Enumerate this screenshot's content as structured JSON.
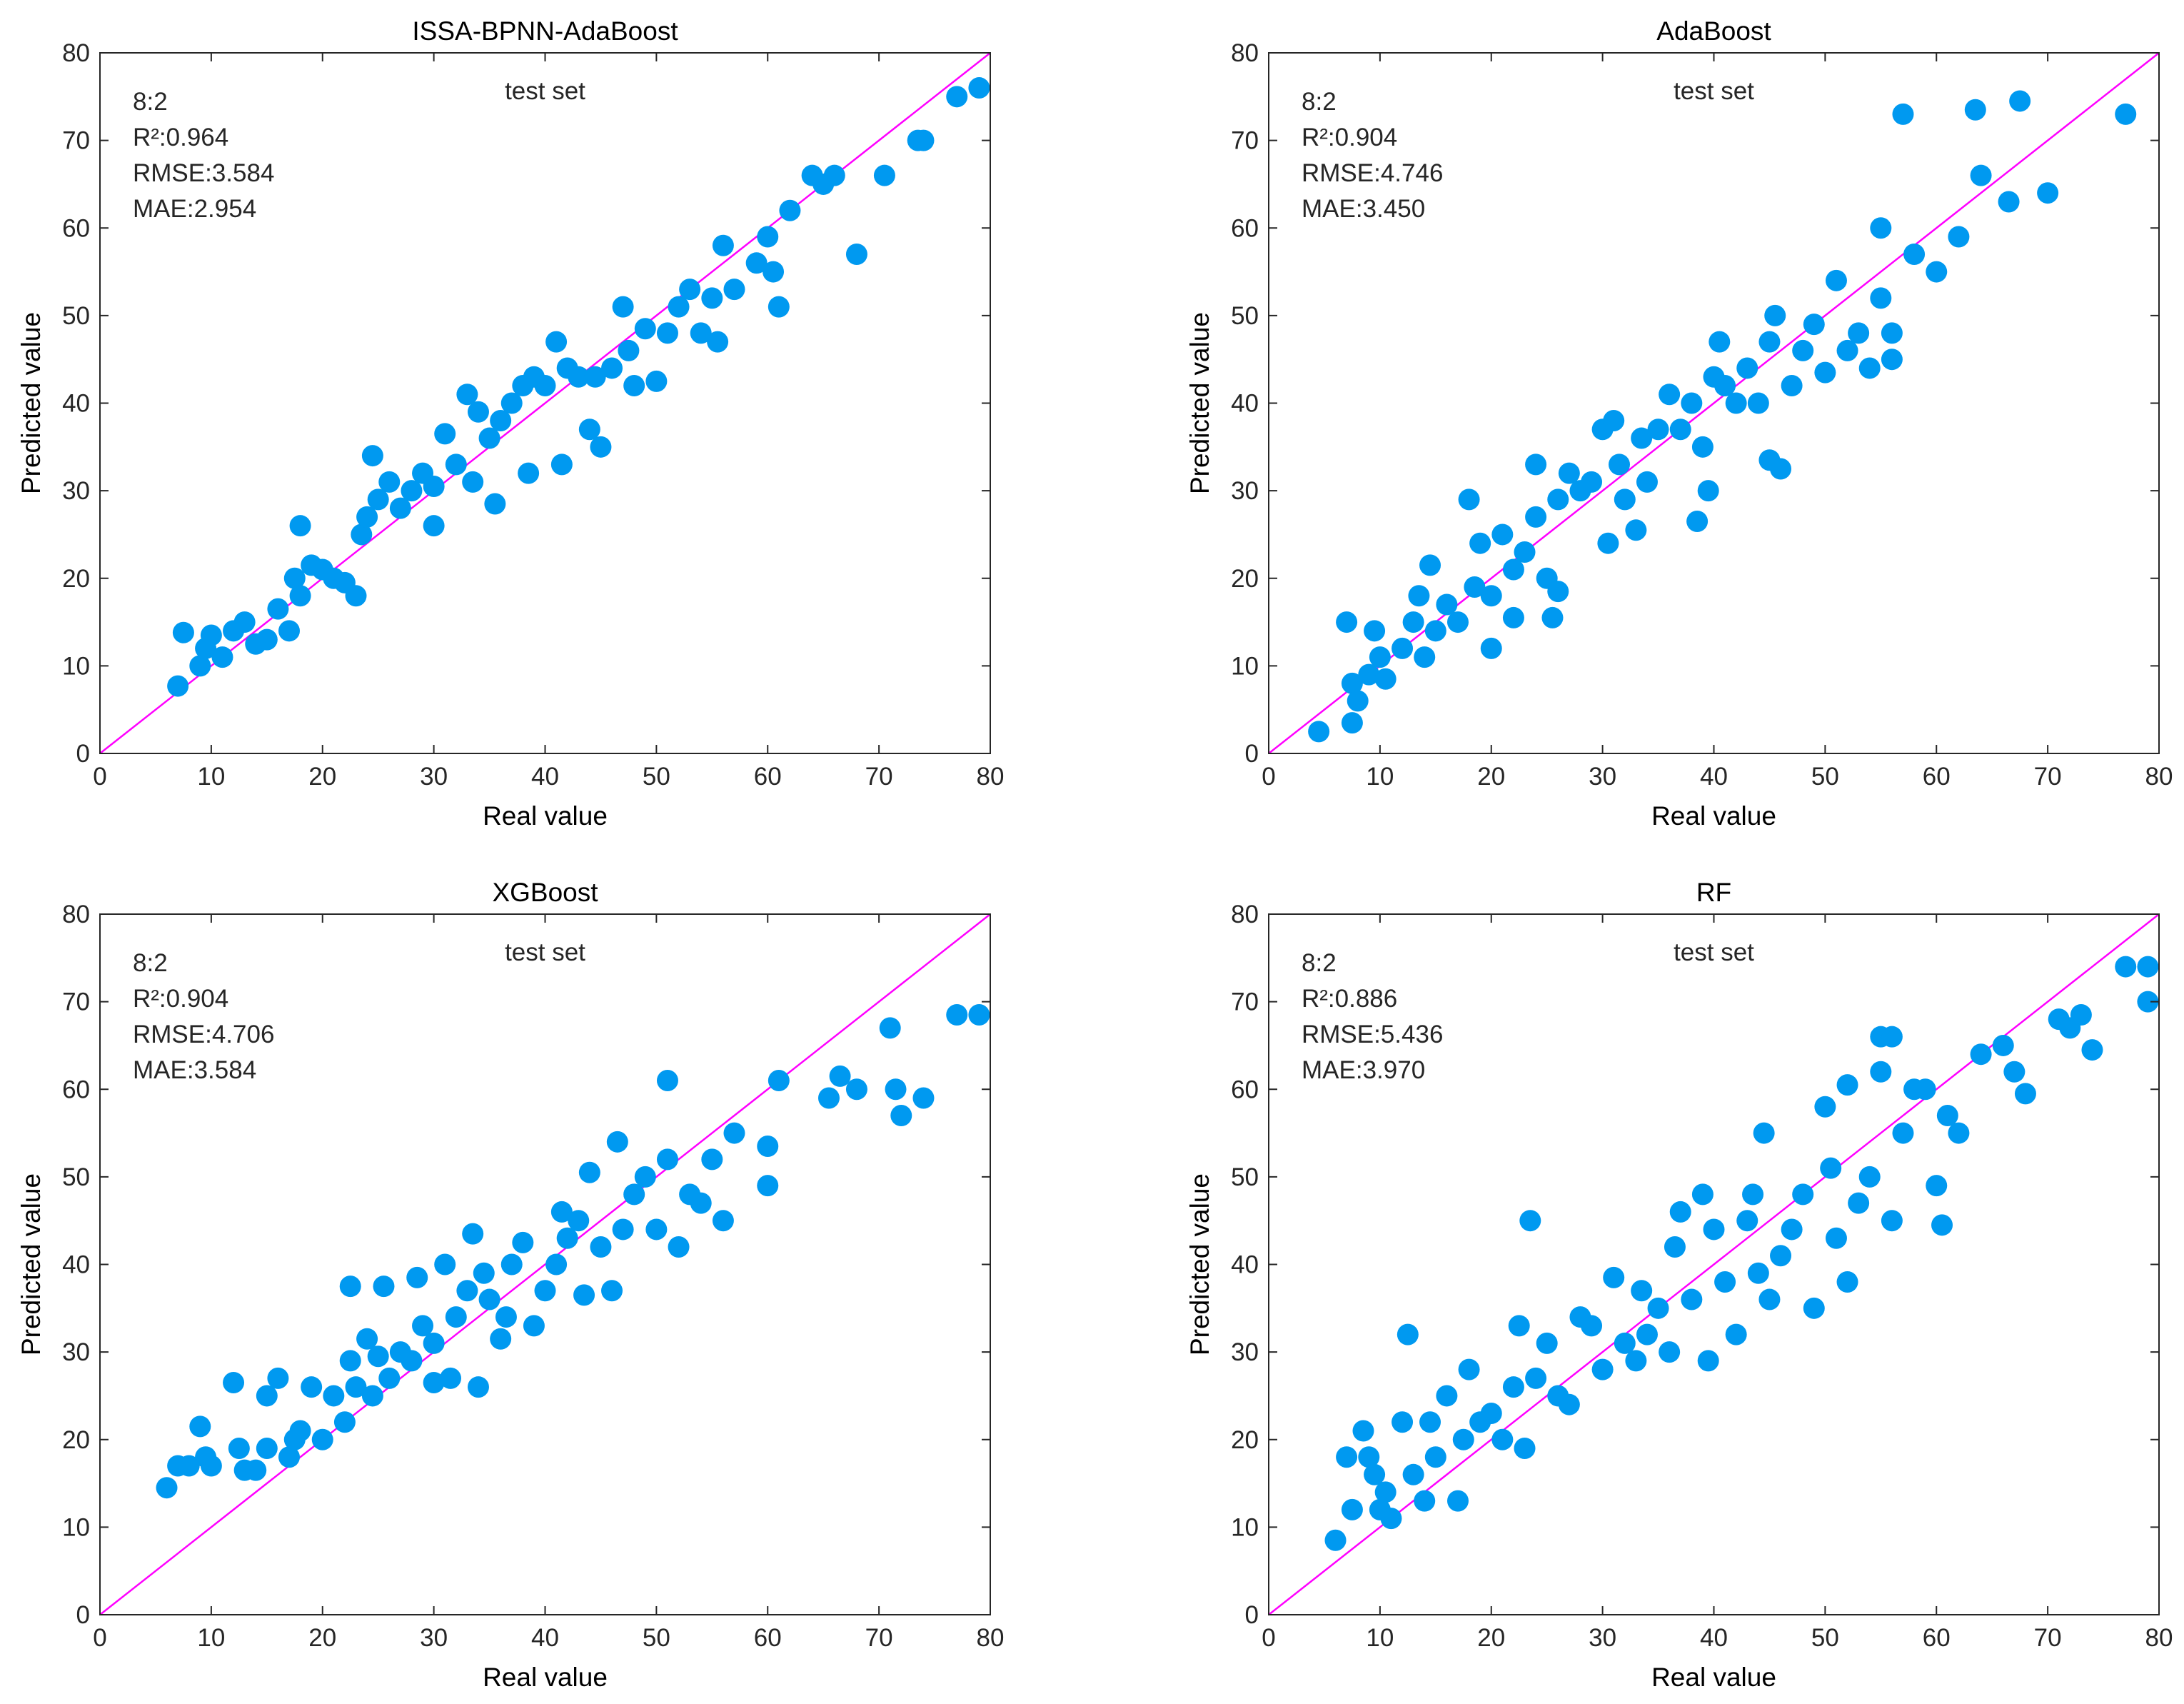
{
  "chart_data": [
    {
      "type": "scatter",
      "title": "ISSA-BPNN-AdaBoost",
      "subtitle": "test set",
      "notes": [
        "8:2",
        "R²:0.964",
        "RMSE:3.584",
        "MAE:2.954"
      ],
      "xlabel": "Real value",
      "ylabel": "Predicted value",
      "color": "#0099f0",
      "diagonal_color": "#ff00ff",
      "xlim": [
        0,
        80
      ],
      "ylim": [
        0,
        80
      ],
      "xticks": [
        0,
        10,
        20,
        30,
        40,
        50,
        60,
        70,
        80
      ],
      "yticks": [
        0,
        10,
        20,
        30,
        40,
        50,
        60,
        70,
        80
      ],
      "x": [
        7,
        7.5,
        9,
        9.5,
        10,
        11,
        12,
        13,
        14,
        15,
        16,
        17,
        17.5,
        18,
        18,
        19,
        20,
        21,
        22,
        23,
        23.5,
        24,
        24.5,
        25,
        26,
        27,
        28,
        29,
        30,
        30,
        31,
        32,
        33,
        33.5,
        34,
        35,
        35.5,
        36,
        37,
        38,
        38.5,
        39,
        40,
        41,
        41.5,
        42,
        43,
        44,
        44.5,
        45,
        46,
        47,
        47.5,
        48,
        49,
        50,
        51,
        52,
        53,
        54,
        55,
        55.5,
        56,
        57,
        59,
        60,
        60.5,
        61,
        62,
        64,
        65,
        66,
        68,
        70.5,
        73.5,
        74,
        77,
        79
      ],
      "values": [
        7.7,
        13.8,
        10,
        12,
        13.5,
        11,
        14,
        15,
        12.5,
        13,
        16.5,
        14,
        20,
        26,
        18,
        21.5,
        21,
        20,
        19.5,
        18,
        25,
        27,
        34,
        29,
        31,
        28,
        30,
        32,
        30.5,
        26,
        36.5,
        33,
        41,
        31,
        39,
        36,
        28.5,
        38,
        40,
        42,
        32,
        43,
        42,
        47,
        33,
        44,
        43,
        37,
        43,
        35,
        44,
        51,
        46,
        42,
        48.5,
        42.5,
        48,
        51,
        53,
        48,
        52,
        47,
        58,
        53,
        56,
        59,
        55,
        51,
        62,
        66,
        65,
        66,
        57,
        66,
        70,
        70,
        75,
        76
      ]
    },
    {
      "type": "scatter",
      "title": "AdaBoost",
      "subtitle": "test set",
      "notes": [
        "8:2",
        "R²:0.904",
        "RMSE:4.746",
        "MAE:3.450"
      ],
      "xlabel": "Real value",
      "ylabel": "Predicted value",
      "color": "#0099f0",
      "diagonal_color": "#ff00ff",
      "xlim": [
        0,
        80
      ],
      "ylim": [
        0,
        80
      ],
      "xticks": [
        0,
        10,
        20,
        30,
        40,
        50,
        60,
        70,
        80
      ],
      "yticks": [
        0,
        10,
        20,
        30,
        40,
        50,
        60,
        70,
        80
      ],
      "x": [
        4.5,
        7,
        7.5,
        7.5,
        8,
        9,
        9.5,
        10,
        10.5,
        12,
        13,
        13.5,
        14,
        14.5,
        15,
        16,
        17,
        18,
        18.5,
        19,
        20,
        20,
        21,
        22,
        22,
        23,
        24,
        24,
        25,
        25.5,
        26,
        26,
        27,
        28,
        29,
        30,
        30.5,
        31,
        31.5,
        32,
        33,
        33.5,
        34,
        35,
        36,
        37,
        38,
        38.5,
        39,
        39.5,
        40,
        40.5,
        41,
        42,
        43,
        44,
        45,
        45,
        45.5,
        46,
        47,
        48,
        49,
        50,
        51,
        52,
        53,
        54,
        55,
        55,
        56,
        56,
        57,
        58,
        60,
        62,
        63.5,
        64,
        66.5,
        67.5,
        70,
        77
      ],
      "values": [
        2.5,
        15,
        8,
        3.5,
        6,
        9,
        14,
        11,
        8.5,
        12,
        15,
        18,
        11,
        21.5,
        14,
        17,
        15,
        29,
        19,
        24,
        12,
        18,
        25,
        15.5,
        21,
        23,
        33,
        27,
        20,
        15.5,
        29,
        18.5,
        32,
        30,
        31,
        37,
        24,
        38,
        33,
        29,
        25.5,
        36,
        31,
        37,
        41,
        37,
        40,
        26.5,
        35,
        30,
        43,
        47,
        42,
        40,
        44,
        40,
        47,
        33.5,
        50,
        32.5,
        42,
        46,
        49,
        43.5,
        54,
        46,
        48,
        44,
        60,
        52,
        45,
        48,
        73,
        57,
        55,
        59,
        73.5,
        66,
        63,
        74.5,
        64,
        73
      ]
    },
    {
      "type": "scatter",
      "title": "XGBoost",
      "subtitle": "test set",
      "notes": [
        "8:2",
        "R²:0.904",
        "RMSE:4.706",
        "MAE:3.584"
      ],
      "xlabel": "Real value",
      "ylabel": "Predicted value",
      "color": "#0099f0",
      "diagonal_color": "#ff00ff",
      "xlim": [
        0,
        80
      ],
      "ylim": [
        0,
        80
      ],
      "xticks": [
        0,
        10,
        20,
        30,
        40,
        50,
        60,
        70,
        80
      ],
      "yticks": [
        0,
        10,
        20,
        30,
        40,
        50,
        60,
        70,
        80
      ],
      "x": [
        6,
        7,
        8,
        9,
        9.5,
        10,
        12,
        12.5,
        13,
        14,
        15,
        15,
        16,
        17,
        17.5,
        18,
        19,
        20,
        21,
        22,
        22.5,
        22.5,
        23,
        24,
        24.5,
        25,
        25.5,
        26,
        27,
        28,
        28.5,
        29,
        30,
        30,
        31,
        31.5,
        32,
        33,
        33.5,
        34,
        34.5,
        35,
        36,
        36.5,
        37,
        38,
        39,
        40,
        41,
        41.5,
        42,
        43,
        43.5,
        44,
        45,
        46,
        46.5,
        47,
        48,
        49,
        50,
        51,
        51,
        52,
        53,
        54,
        55,
        56,
        57,
        60,
        60,
        61,
        65.5,
        66.5,
        68,
        71,
        71.5,
        72,
        74,
        77,
        79
      ],
      "values": [
        14.5,
        17,
        17,
        21.5,
        18,
        17,
        26.5,
        19,
        16.5,
        16.5,
        25,
        19,
        27,
        18,
        20,
        21,
        26,
        20,
        25,
        22,
        29,
        37.5,
        26,
        31.5,
        25,
        29.5,
        37.5,
        27,
        30,
        29,
        38.5,
        33,
        31,
        26.5,
        40,
        27,
        34,
        37,
        43.5,
        26,
        39,
        36,
        31.5,
        34,
        40,
        42.5,
        33,
        37,
        40,
        46,
        43,
        45,
        36.5,
        50.5,
        42,
        37,
        54,
        44,
        48,
        50,
        44,
        61,
        52,
        42,
        48,
        47,
        52,
        45,
        55,
        53.5,
        49,
        61,
        59,
        61.5,
        60,
        67,
        60,
        57,
        59,
        68.5,
        68.5
      ]
    },
    {
      "type": "scatter",
      "title": "RF",
      "subtitle": "test set",
      "notes": [
        "8:2",
        "R²:0.886",
        "RMSE:5.436",
        "MAE:3.970"
      ],
      "xlabel": "Real value",
      "ylabel": "Predicted value",
      "color": "#0099f0",
      "diagonal_color": "#ff00ff",
      "xlim": [
        0,
        80
      ],
      "ylim": [
        0,
        80
      ],
      "xticks": [
        0,
        10,
        20,
        30,
        40,
        50,
        60,
        70,
        80
      ],
      "yticks": [
        0,
        10,
        20,
        30,
        40,
        50,
        60,
        70,
        80
      ],
      "x": [
        6,
        7,
        7.5,
        8.5,
        9,
        9.5,
        10,
        10.5,
        11,
        12,
        12.5,
        13,
        14,
        14.5,
        15,
        16,
        17,
        17.5,
        18,
        19,
        20,
        21,
        22,
        22.5,
        23,
        23.5,
        24,
        25,
        26,
        27,
        28,
        29,
        30,
        31,
        32,
        33,
        33.5,
        34,
        35,
        36,
        36.5,
        37,
        38,
        39,
        39.5,
        40,
        41,
        42,
        43,
        43.5,
        44,
        44.5,
        45,
        46,
        47,
        48,
        49,
        50,
        50.5,
        51,
        52,
        52,
        53,
        54,
        55,
        55,
        56,
        56,
        57,
        58,
        59,
        60,
        60.5,
        61,
        62,
        64,
        66,
        67,
        68,
        71,
        72,
        73,
        74,
        77,
        79,
        79
      ],
      "values": [
        8.5,
        18,
        12,
        21,
        18,
        16,
        12,
        14,
        11,
        22,
        32,
        16,
        13,
        22,
        18,
        25,
        13,
        20,
        28,
        22,
        23,
        20,
        26,
        33,
        19,
        45,
        27,
        31,
        25,
        24,
        34,
        33,
        28,
        38.5,
        31,
        29,
        37,
        32,
        35,
        30,
        42,
        46,
        36,
        48,
        29,
        44,
        38,
        32,
        45,
        48,
        39,
        55,
        36,
        41,
        44,
        48,
        35,
        58,
        51,
        43,
        60.5,
        38,
        47,
        50,
        66,
        62,
        66,
        45,
        55,
        60,
        60,
        49,
        44.5,
        57,
        55,
        64,
        65,
        62,
        59.5,
        68,
        67,
        68.5,
        64.5,
        74,
        74,
        70
      ]
    }
  ]
}
